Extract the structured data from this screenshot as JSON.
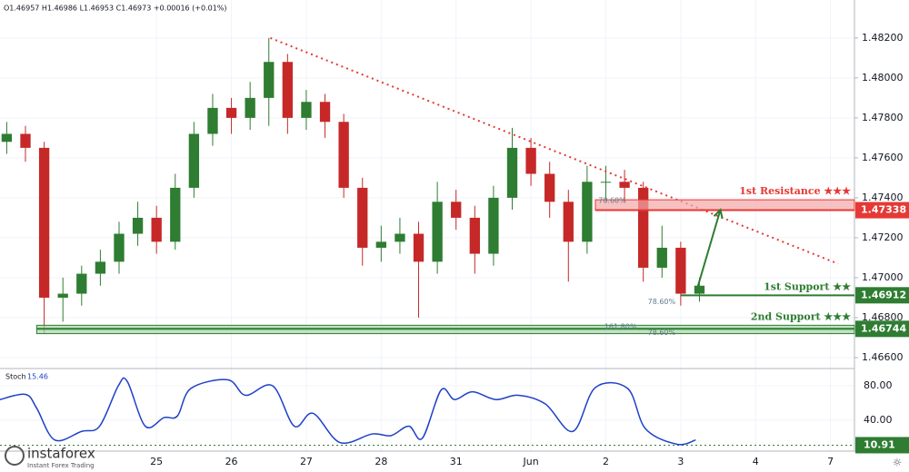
{
  "header": "O1.46957 H1.46986 L1.46953 C1.46973 +0.00016 (+0.01%)",
  "logo": {
    "name": "instaforex",
    "tagline": "Instant Forex Trading"
  },
  "chart_data": [
    {
      "type": "candlestick",
      "grid": true,
      "up_color": "#2e7d32",
      "down_color": "#c62828",
      "xlim": [
        -2.09,
        9.32
      ],
      "ylim": [
        1.4655,
        1.4839
      ],
      "yticks": [
        {
          "value": 1.466,
          "label": "1.46600"
        },
        {
          "value": 1.468,
          "label": "1.46800"
        },
        {
          "value": 1.47,
          "label": "1.47000"
        },
        {
          "value": 1.472,
          "label": "1.47200"
        },
        {
          "value": 1.474,
          "label": "1.47400"
        },
        {
          "value": 1.476,
          "label": "1.47600"
        },
        {
          "value": 1.478,
          "label": "1.47800"
        },
        {
          "value": 1.48,
          "label": "1.48000"
        },
        {
          "value": 1.482,
          "label": "1.48200"
        }
      ],
      "x": [
        -2.0,
        -1.75,
        -1.5,
        -1.25,
        -1.0,
        -0.75,
        -0.5,
        -0.25,
        0.0,
        0.25,
        0.5,
        0.75,
        1.0,
        1.25,
        1.5,
        1.75,
        2.0,
        2.25,
        2.5,
        2.75,
        3.0,
        3.25,
        3.5,
        3.75,
        4.0,
        4.25,
        4.5,
        4.75,
        5.0,
        5.25,
        5.5,
        5.75,
        6.0,
        6.25,
        6.5,
        6.75,
        7.0,
        7.25
      ],
      "open": [
        1.4768,
        1.4772,
        1.4765,
        1.469,
        1.4692,
        1.4702,
        1.4708,
        1.4722,
        1.473,
        1.4718,
        1.4745,
        1.4772,
        1.4785,
        1.478,
        1.479,
        1.4808,
        1.478,
        1.4788,
        1.4778,
        1.4745,
        1.4715,
        1.4718,
        1.4722,
        1.4708,
        1.4738,
        1.473,
        1.4712,
        1.474,
        1.4765,
        1.4752,
        1.4738,
        1.4718,
        1.4748,
        1.4748,
        1.4745,
        1.4705,
        1.4715,
        1.4692
      ],
      "high": [
        1.4778,
        1.4776,
        1.4768,
        1.47,
        1.4706,
        1.4714,
        1.4728,
        1.4738,
        1.4736,
        1.4752,
        1.4778,
        1.4792,
        1.479,
        1.4798,
        1.482,
        1.4812,
        1.4794,
        1.4792,
        1.4782,
        1.475,
        1.4726,
        1.473,
        1.4728,
        1.4748,
        1.4744,
        1.4736,
        1.4746,
        1.4775,
        1.477,
        1.4758,
        1.4744,
        1.4756,
        1.4756,
        1.4754,
        1.4748,
        1.4726,
        1.4718,
        1.47
      ],
      "low": [
        1.4762,
        1.4758,
        1.4672,
        1.4678,
        1.4686,
        1.4696,
        1.4702,
        1.4716,
        1.4712,
        1.4714,
        1.474,
        1.4766,
        1.4772,
        1.4774,
        1.4776,
        1.4772,
        1.4774,
        1.477,
        1.474,
        1.4706,
        1.4708,
        1.4712,
        1.468,
        1.4702,
        1.4724,
        1.4702,
        1.4706,
        1.4734,
        1.4746,
        1.473,
        1.4698,
        1.4712,
        1.4738,
        1.4738,
        1.4698,
        1.47,
        1.4686,
        1.4688
      ],
      "close": [
        1.4772,
        1.4765,
        1.469,
        1.4692,
        1.4702,
        1.4708,
        1.4722,
        1.473,
        1.4718,
        1.4745,
        1.4772,
        1.4785,
        1.478,
        1.479,
        1.4808,
        1.478,
        1.4788,
        1.4778,
        1.4745,
        1.4715,
        1.4718,
        1.4722,
        1.4708,
        1.4738,
        1.473,
        1.4712,
        1.474,
        1.4765,
        1.4752,
        1.4738,
        1.4718,
        1.4748,
        1.4748,
        1.4745,
        1.4705,
        1.4715,
        1.4692,
        1.4696
      ],
      "trendline": {
        "x": [
          1.52,
          9.1
        ],
        "price": [
          1.482,
          1.4707
        ],
        "color": "#e53935"
      },
      "levels": [
        {
          "name": "1st Resistance ★★★",
          "price": 1.47338,
          "top": 1.4739,
          "bottom": 1.47338,
          "x_start": 5.86,
          "color": "#e53935",
          "fill": "#f4a6a6"
        },
        {
          "name": "1st Support ★★",
          "price": 1.46912,
          "top": 1.46912,
          "bottom": 1.46912,
          "x_start": 7.0,
          "color": "#2e7d32",
          "fill": "#2e7d32"
        },
        {
          "name": "2nd Support ★★★",
          "price": 1.46744,
          "top": 1.46762,
          "bottom": 1.4672,
          "x_start": -1.6,
          "color": "#2e7d32",
          "fill": "#a5d6a7"
        }
      ],
      "arrow": {
        "x": [
          7.2,
          7.53
        ],
        "price": [
          1.4692,
          1.4734
        ],
        "color": "#2e7d32"
      },
      "fib_labels": [
        {
          "text": "78.60%",
          "x": 5.9,
          "price": 1.47385
        },
        {
          "text": "78.60%",
          "x": 6.56,
          "price": 1.4688
        },
        {
          "text": "161.80%",
          "x": 5.98,
          "price": 1.46755
        },
        {
          "text": "78.60%",
          "x": 6.56,
          "price": 1.46725
        }
      ]
    },
    {
      "type": "line",
      "title": "Stoch",
      "current_label": 15.46,
      "grid": true,
      "xlim": [
        -2.09,
        9.32
      ],
      "ylim": [
        4,
        98
      ],
      "yticks": [
        {
          "value": 40,
          "label": "40.00"
        },
        {
          "value": 80,
          "label": "80.00"
        }
      ],
      "xticks": [
        {
          "value": 0,
          "label": "25"
        },
        {
          "value": 1,
          "label": "26"
        },
        {
          "value": 2,
          "label": "27"
        },
        {
          "value": 3,
          "label": "28"
        },
        {
          "value": 4,
          "label": "31"
        },
        {
          "value": 5,
          "label": "Jun"
        },
        {
          "value": 6,
          "label": "2"
        },
        {
          "value": 7,
          "label": "3"
        },
        {
          "value": 8,
          "label": "4"
        },
        {
          "value": 9,
          "label": "7"
        }
      ],
      "level": 10.91,
      "series": [
        {
          "name": "Stoch",
          "color": "#1e40c8",
          "x": [
            -2.09,
            -1.75,
            -1.6,
            -1.36,
            -1.0,
            -0.76,
            -0.51,
            -0.39,
            -0.15,
            0.1,
            0.28,
            0.46,
            0.95,
            1.19,
            1.55,
            1.84,
            2.09,
            2.45,
            2.88,
            3.13,
            3.37,
            3.55,
            3.8,
            3.98,
            4.22,
            4.53,
            4.83,
            5.19,
            5.56,
            5.86,
            6.29,
            6.53,
            6.95,
            7.2
          ],
          "values": [
            64,
            70,
            54,
            17,
            27,
            33,
            80,
            85,
            33,
            43,
            45,
            77,
            87,
            69,
            80,
            33,
            48,
            14,
            24,
            22,
            33,
            19,
            75,
            64,
            73,
            64,
            69,
            59,
            27,
            78,
            77,
            30,
            12,
            17
          ]
        }
      ]
    }
  ]
}
